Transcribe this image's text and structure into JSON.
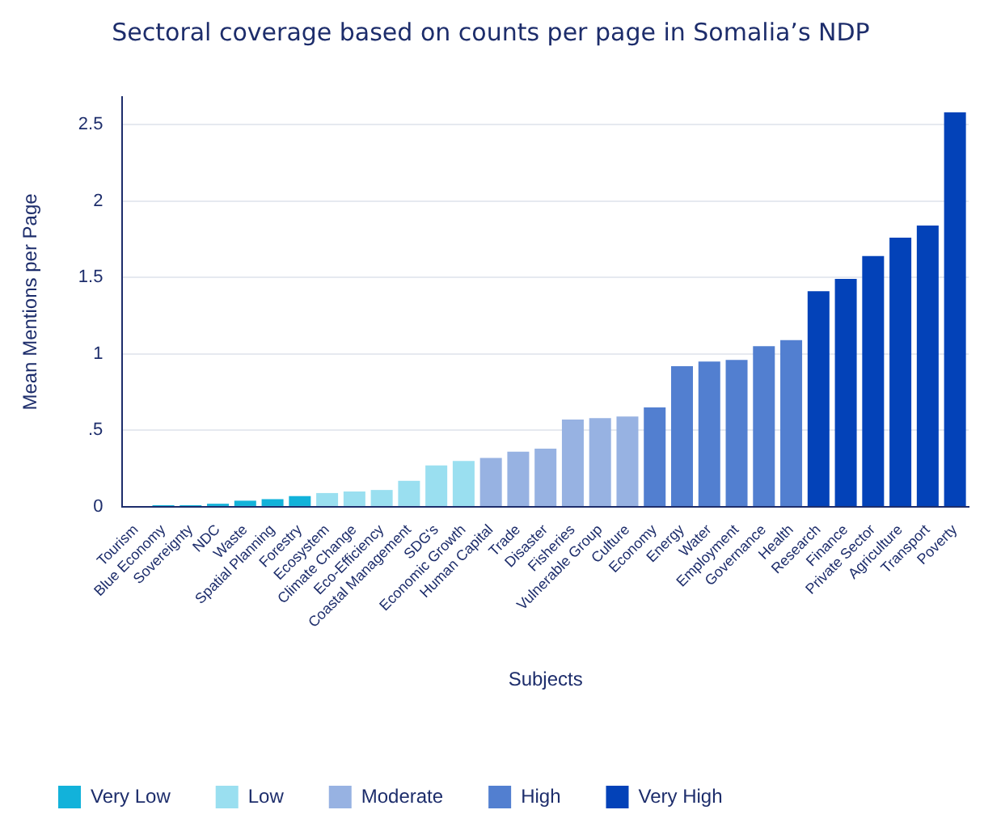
{
  "chart_data": {
    "type": "bar",
    "title": "Sectoral coverage based on counts per page in Somalia’s NDP",
    "xlabel": "Subjects",
    "ylabel": "Mean Mentions per Page",
    "categories": [
      "Tourism",
      "Blue Economy",
      "Sovereignty",
      "NDC",
      "Waste",
      "Spatial Planning",
      "Forestry",
      "Ecosystem",
      "Climate Change",
      "Eco-Efficiency",
      "Coastal Management",
      "SDG's",
      "Economic Growth",
      "Human Capital",
      "Trade",
      "Disaster",
      "Fisheries",
      "Vulnerable Group",
      "Culture",
      "Economy",
      "Energy",
      "Water",
      "Employment",
      "Governance",
      "Health",
      "Research",
      "Finance",
      "Private Sector",
      "Agriculture",
      "Transport",
      "Poverty"
    ],
    "series": [
      {
        "name": "Very Low",
        "color": "#12b2da",
        "values": [
          0,
          0.01,
          0.01,
          0.02,
          0.04,
          0.05,
          0.07,
          null,
          null,
          null,
          null,
          null,
          null,
          null,
          null,
          null,
          null,
          null,
          null,
          null,
          null,
          null,
          null,
          null,
          null,
          null,
          null,
          null,
          null,
          null,
          null
        ]
      },
      {
        "name": "Low",
        "color": "#9adff0",
        "values": [
          null,
          null,
          null,
          null,
          null,
          null,
          null,
          0.09,
          0.1,
          0.11,
          0.17,
          0.27,
          0.3,
          null,
          null,
          null,
          null,
          null,
          null,
          null,
          null,
          null,
          null,
          null,
          null,
          null,
          null,
          null,
          null,
          null,
          null
        ]
      },
      {
        "name": "Moderate",
        "color": "#97b2e2",
        "values": [
          null,
          null,
          null,
          null,
          null,
          null,
          null,
          null,
          null,
          null,
          null,
          null,
          null,
          0.32,
          0.36,
          0.38,
          0.57,
          0.58,
          0.59,
          null,
          null,
          null,
          null,
          null,
          null,
          null,
          null,
          null,
          null,
          null,
          null
        ]
      },
      {
        "name": "High",
        "color": "#527fd0",
        "values": [
          null,
          null,
          null,
          null,
          null,
          null,
          null,
          null,
          null,
          null,
          null,
          null,
          null,
          null,
          null,
          null,
          null,
          null,
          null,
          0.65,
          0.92,
          0.95,
          0.96,
          1.05,
          1.09,
          null,
          null,
          null,
          null,
          null,
          null
        ]
      },
      {
        "name": "Very High",
        "color": "#0342b8",
        "values": [
          null,
          null,
          null,
          null,
          null,
          null,
          null,
          null,
          null,
          null,
          null,
          null,
          null,
          null,
          null,
          null,
          null,
          null,
          null,
          null,
          null,
          null,
          null,
          null,
          null,
          1.41,
          1.49,
          1.64,
          1.76,
          1.84,
          2.58
        ]
      }
    ],
    "ylim": [
      0,
      2.68
    ],
    "yticks": [
      0,
      {
        "value": 0.5,
        "label": ".5"
      },
      1,
      1.5,
      2,
      2.5
    ],
    "grid": "y",
    "legend": "bottom left"
  }
}
